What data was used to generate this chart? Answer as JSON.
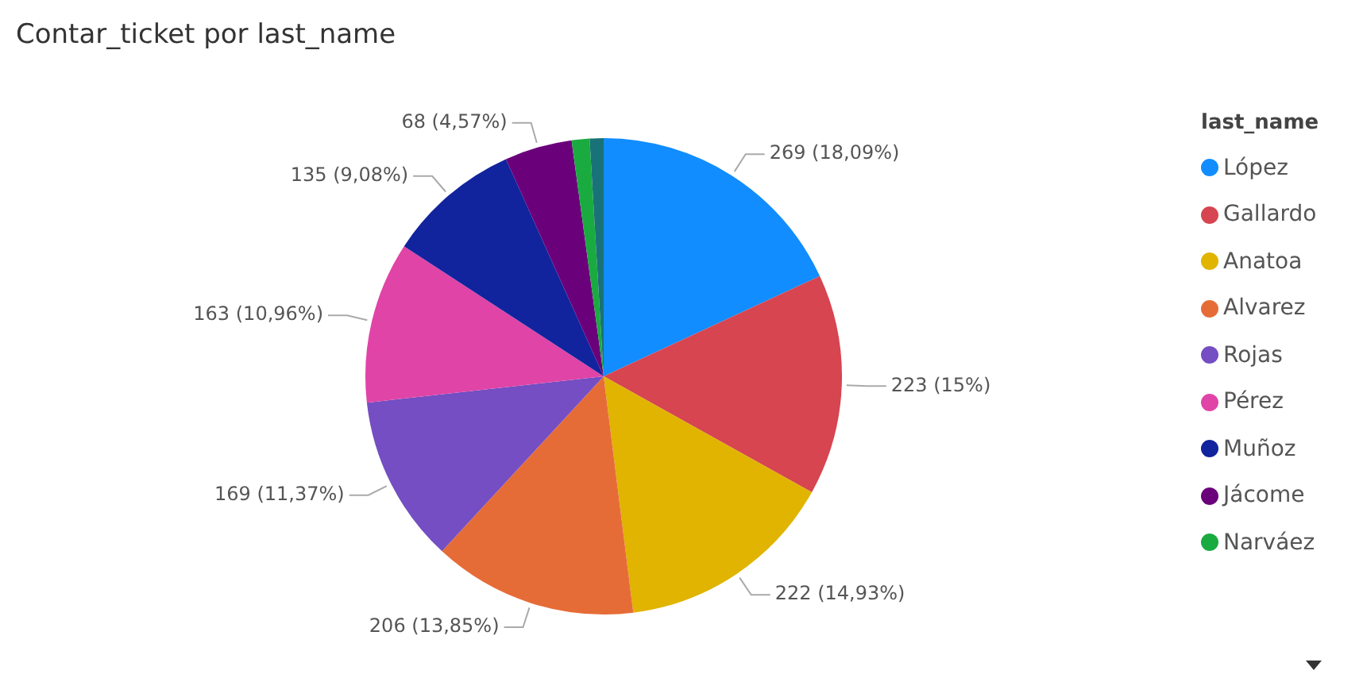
{
  "chart_data": {
    "type": "pie",
    "title": "Contar_ticket por last_name",
    "legend_title": "last_name",
    "legend": "right",
    "categories": [
      "López",
      "Gallardo",
      "Anatoa",
      "Alvarez",
      "Rojas",
      "Pérez",
      "Muñoz",
      "Jácome",
      "Narváez",
      null
    ],
    "values": [
      269,
      223,
      222,
      206,
      169,
      163,
      135,
      68,
      18,
      14
    ],
    "colors": [
      "#118dff",
      "#d64550",
      "#e0b400",
      "#e66c37",
      "#744ec2",
      "#e044a7",
      "#12239e",
      "#6b007b",
      "#1aab40",
      "#197278"
    ],
    "value_labels": [
      "269 (18,09%)",
      "223 (15%)",
      "222 (14,93%)",
      "206 (13,85%)",
      "169 (11,37%)",
      "163 (10,96%)",
      "135 (9,08%)",
      "68 (4,57%)",
      null,
      null
    ]
  }
}
